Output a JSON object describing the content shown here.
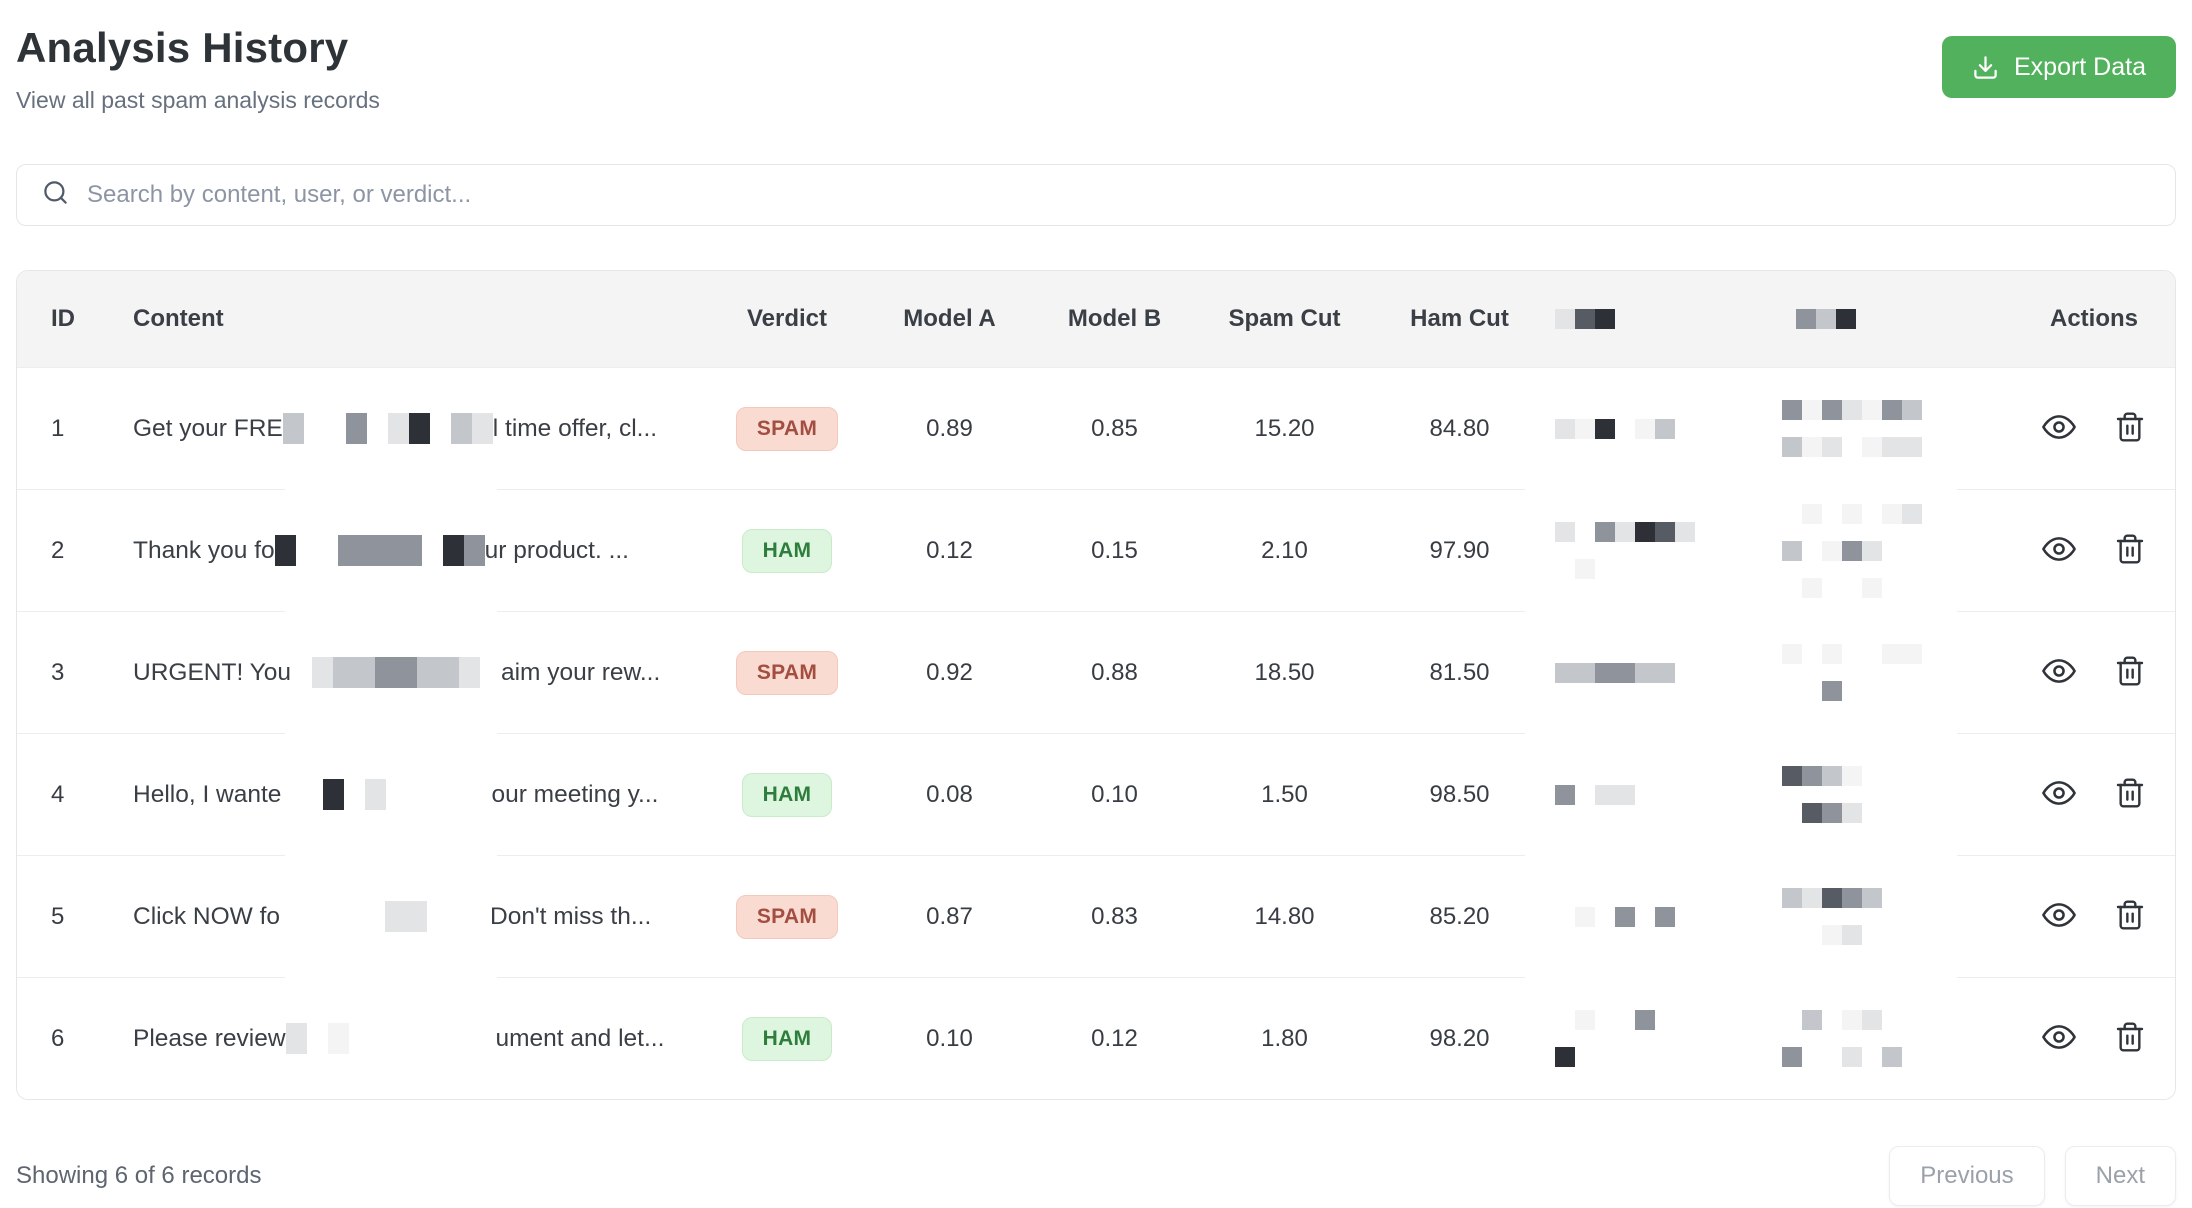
{
  "header": {
    "title": "Analysis History",
    "subtitle": "View all past spam analysis records",
    "export_label": "Export Data"
  },
  "search": {
    "placeholder": "Search by content, user, or verdict...",
    "value": ""
  },
  "table": {
    "columns": [
      "ID",
      "Content",
      "Verdict",
      "Model A",
      "Model B",
      "Spam Cut",
      "Ham Cut",
      "",
      "",
      "Actions"
    ],
    "redacted_column_indexes": [
      7,
      8
    ],
    "rows": [
      {
        "id": "1",
        "content_start": "Get your FRE",
        "content_end": "l time offer, cl...",
        "verdict": "SPAM",
        "model_a": "0.89",
        "model_b": "0.85",
        "spam_cut": "15.20",
        "ham_cut": "84.80"
      },
      {
        "id": "2",
        "content_start": "Thank you fo",
        "content_end": "ur product. ...",
        "verdict": "HAM",
        "model_a": "0.12",
        "model_b": "0.15",
        "spam_cut": "2.10",
        "ham_cut": "97.90"
      },
      {
        "id": "3",
        "content_start": "URGENT! You",
        "content_end": "aim your rew...",
        "verdict": "SPAM",
        "model_a": "0.92",
        "model_b": "0.88",
        "spam_cut": "18.50",
        "ham_cut": "81.50"
      },
      {
        "id": "4",
        "content_start": "Hello, I wante",
        "content_end": "our meeting y...",
        "verdict": "HAM",
        "model_a": "0.08",
        "model_b": "0.10",
        "spam_cut": "1.50",
        "ham_cut": "98.50"
      },
      {
        "id": "5",
        "content_start": "Click NOW fo",
        "content_end": "Don't miss th...",
        "verdict": "SPAM",
        "model_a": "0.87",
        "model_b": "0.83",
        "spam_cut": "14.80",
        "ham_cut": "85.20"
      },
      {
        "id": "6",
        "content_start": "Please review",
        "content_end": "ument and let...",
        "verdict": "HAM",
        "model_a": "0.10",
        "model_b": "0.12",
        "spam_cut": "1.80",
        "ham_cut": "98.20"
      }
    ],
    "verdict_styles": {
      "SPAM": {
        "bg": "#f9dbd2",
        "text": "#a34e41",
        "border": "#f3c9bc"
      },
      "HAM": {
        "bg": "#def5df",
        "text": "#2e7d3c",
        "border": "#c8ecca"
      }
    }
  },
  "footer": {
    "summary": "Showing 6 of 6 records",
    "previous_label": "Previous",
    "next_label": "Next"
  },
  "colors": {
    "accent_green": "#52b15c",
    "header_bg": "#f4f4f5"
  }
}
